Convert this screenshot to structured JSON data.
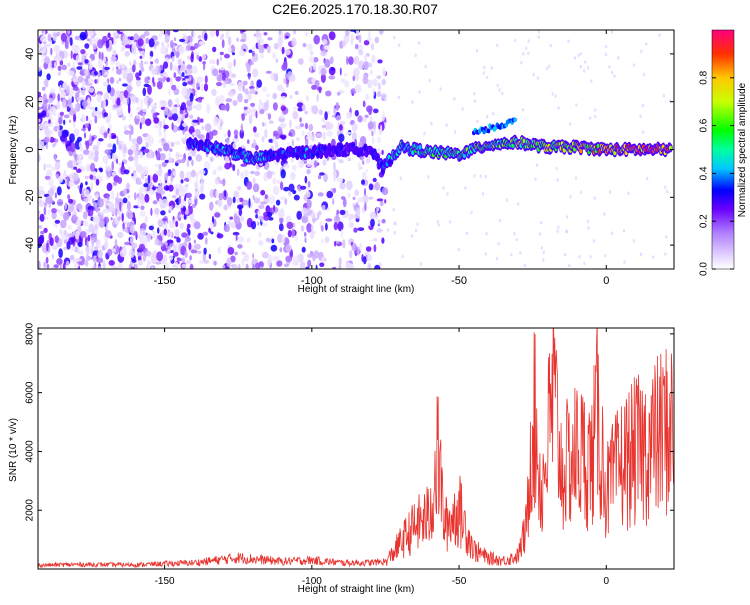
{
  "title": "C2E6.2025.170.18.30.R07",
  "colors": {
    "snr_line": "#e8332e",
    "axis": "#000000"
  },
  "chart_data": [
    {
      "type": "heatmap",
      "name": "spectrogram",
      "xlabel": "Height of straight line (km)",
      "ylabel": "Frequency (Hz)",
      "xlim": [
        -193,
        23
      ],
      "ylim": [
        -50,
        50
      ],
      "xticks": [
        -150,
        -100,
        -50,
        0
      ],
      "yticks": [
        -40,
        -20,
        0,
        20,
        40
      ],
      "colorbar": {
        "label": "Normalized spectral amplitude",
        "range": [
          0,
          1
        ],
        "ticks": [
          "0.0",
          "0.2",
          "0.4",
          "0.6",
          "0.8"
        ],
        "colormap": "rainbow"
      },
      "noise_regions_x": [
        [
          -193,
          -140
        ],
        [
          -140,
          -75
        ]
      ],
      "signal_trace": {
        "x": [
          -142,
          -130,
          -120,
          -110,
          -100,
          -90,
          -80,
          -76,
          -70,
          -60,
          -50,
          -40,
          -30,
          -20,
          -10,
          0,
          10,
          22
        ],
        "freq": [
          3,
          0,
          -4,
          -2,
          -1,
          0,
          0,
          -8,
          1,
          -1,
          -2,
          2,
          3,
          1,
          1,
          0,
          0,
          0
        ],
        "amplitude": [
          0.4,
          0.45,
          0.45,
          0.35,
          0.4,
          0.3,
          0.3,
          0.4,
          0.5,
          0.55,
          0.6,
          0.62,
          0.65,
          0.7,
          0.8,
          0.85,
          0.9,
          0.95
        ]
      }
    },
    {
      "type": "line",
      "name": "snr",
      "xlabel": "Height of straight line (km)",
      "ylabel": "SNR (10 * v/v)",
      "xlim": [
        -193,
        23
      ],
      "ylim": [
        0,
        8200
      ],
      "xticks": [
        -150,
        -100,
        -50,
        0
      ],
      "yticks": [
        2000,
        4000,
        6000,
        8000
      ],
      "series": [
        {
          "x": [
            -193,
            -180,
            -160,
            -140,
            -125,
            -110,
            -100,
            -90,
            -80,
            -75,
            -70,
            -65,
            -60,
            -57,
            -55,
            -50,
            -45,
            -40,
            -35,
            -30,
            -27,
            -25,
            -22,
            -18,
            -15,
            -10,
            -5,
            -3,
            0,
            5,
            10,
            15,
            20,
            23
          ],
          "y": [
            150,
            180,
            170,
            250,
            450,
            300,
            350,
            250,
            250,
            300,
            1200,
            2000,
            2500,
            5400,
            2000,
            2800,
            900,
            500,
            400,
            600,
            2000,
            7900,
            3500,
            8200,
            4500,
            5500,
            5000,
            7200,
            3600,
            4900,
            5500,
            5800,
            6500,
            6800
          ]
        }
      ]
    }
  ]
}
